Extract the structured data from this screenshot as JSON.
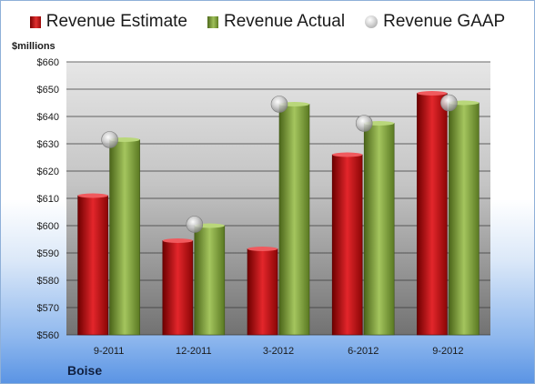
{
  "chart_data": {
    "type": "bar",
    "categories": [
      "9-2011",
      "12-2011",
      "3-2012",
      "6-2012",
      "9-2012"
    ],
    "series": [
      {
        "name": "Revenue Estimate",
        "values": [
          611,
          594.5,
          591.5,
          626,
          648.5
        ],
        "color": "#c8161d"
      },
      {
        "name": "Revenue Actual",
        "values": [
          631.5,
          600,
          644.5,
          637.5,
          645
        ],
        "color": "#86a944"
      },
      {
        "name": "Revenue GAAP",
        "values": [
          631.5,
          600.5,
          644.5,
          637.5,
          645
        ],
        "color": "#c0c0c0",
        "marker": "sphere"
      }
    ],
    "ylabel": "$millions",
    "ylim": [
      560,
      660
    ],
    "ytick_step": 10,
    "ytick_prefix": "$",
    "grid": true,
    "legend": "top-center"
  },
  "labels": {
    "unit": "$millions",
    "company": "Boise"
  },
  "legend": [
    {
      "label": "Revenue Estimate",
      "icon": "red-bar-swatch"
    },
    {
      "label": "Revenue Actual",
      "icon": "green-bar-swatch"
    },
    {
      "label": "Revenue GAAP",
      "icon": "gray-sphere-marker"
    }
  ]
}
